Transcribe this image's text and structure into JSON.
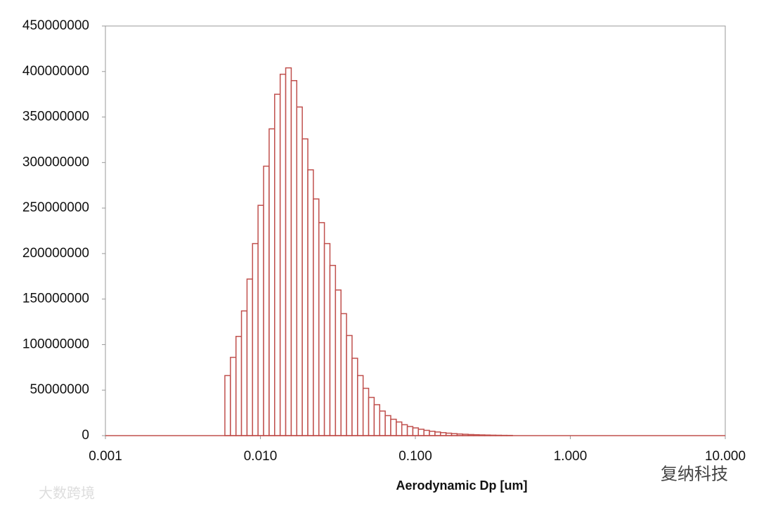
{
  "chart_data": {
    "type": "histogram",
    "xlabel": "Aerodynamic Dp [um]",
    "xscale": "log",
    "bins": [
      0.0059,
      0.00641,
      0.00696,
      0.00755,
      0.0082,
      0.0089,
      0.00966,
      0.01049,
      0.01139,
      0.01236,
      0.01342,
      0.01457,
      0.01582,
      0.01717,
      0.01864,
      0.02024,
      0.02197,
      0.02385,
      0.02589,
      0.02811,
      0.03052,
      0.03313,
      0.03597,
      0.03905,
      0.04239,
      0.04602,
      0.04996,
      0.05424,
      0.05888,
      0.06392,
      0.06939,
      0.07533,
      0.08178,
      0.08878,
      0.09638,
      0.1046,
      0.1136,
      0.1233,
      0.1339,
      0.1453,
      0.1578,
      0.1713,
      0.186,
      0.2019,
      0.2192,
      0.238,
      0.2583,
      0.2805,
      0.3045,
      0.3305,
      0.3588,
      0.3896,
      0.4229
    ],
    "counts": [
      66000000,
      86000000,
      109000000,
      137000000,
      172000000,
      211000000,
      253000000,
      296000000,
      337000000,
      375000000,
      397000000,
      404000000,
      390000000,
      361000000,
      326000000,
      292000000,
      260000000,
      234000000,
      211000000,
      187000000,
      160000000,
      134000000,
      110000000,
      85000000,
      66000000,
      52000000,
      42000000,
      34000000,
      27000000,
      22000000,
      18000000,
      15000000,
      12000000,
      10000000,
      8500000,
      7000000,
      5800000,
      4800000,
      4000000,
      3300000,
      2700000,
      2200000,
      1800000,
      1500000,
      1200000,
      1000000,
      800000,
      650000,
      500000,
      400000,
      300000,
      250000
    ],
    "color": "#c0504d",
    "xlim": [
      0.001,
      10
    ],
    "xticks": [
      {
        "value": 0.001,
        "label": "0.001"
      },
      {
        "value": 0.01,
        "label": "0.010"
      },
      {
        "value": 0.1,
        "label": "0.100"
      },
      {
        "value": 1,
        "label": "1.000"
      },
      {
        "value": 10,
        "label": "10.000"
      }
    ],
    "ylim": [
      0,
      450000000
    ],
    "yticks": [
      0,
      50000000,
      100000000,
      150000000,
      200000000,
      250000000,
      300000000,
      350000000,
      400000000,
      450000000
    ],
    "grid": false,
    "annotations": [
      "大数跨境",
      "复纳科技"
    ]
  }
}
